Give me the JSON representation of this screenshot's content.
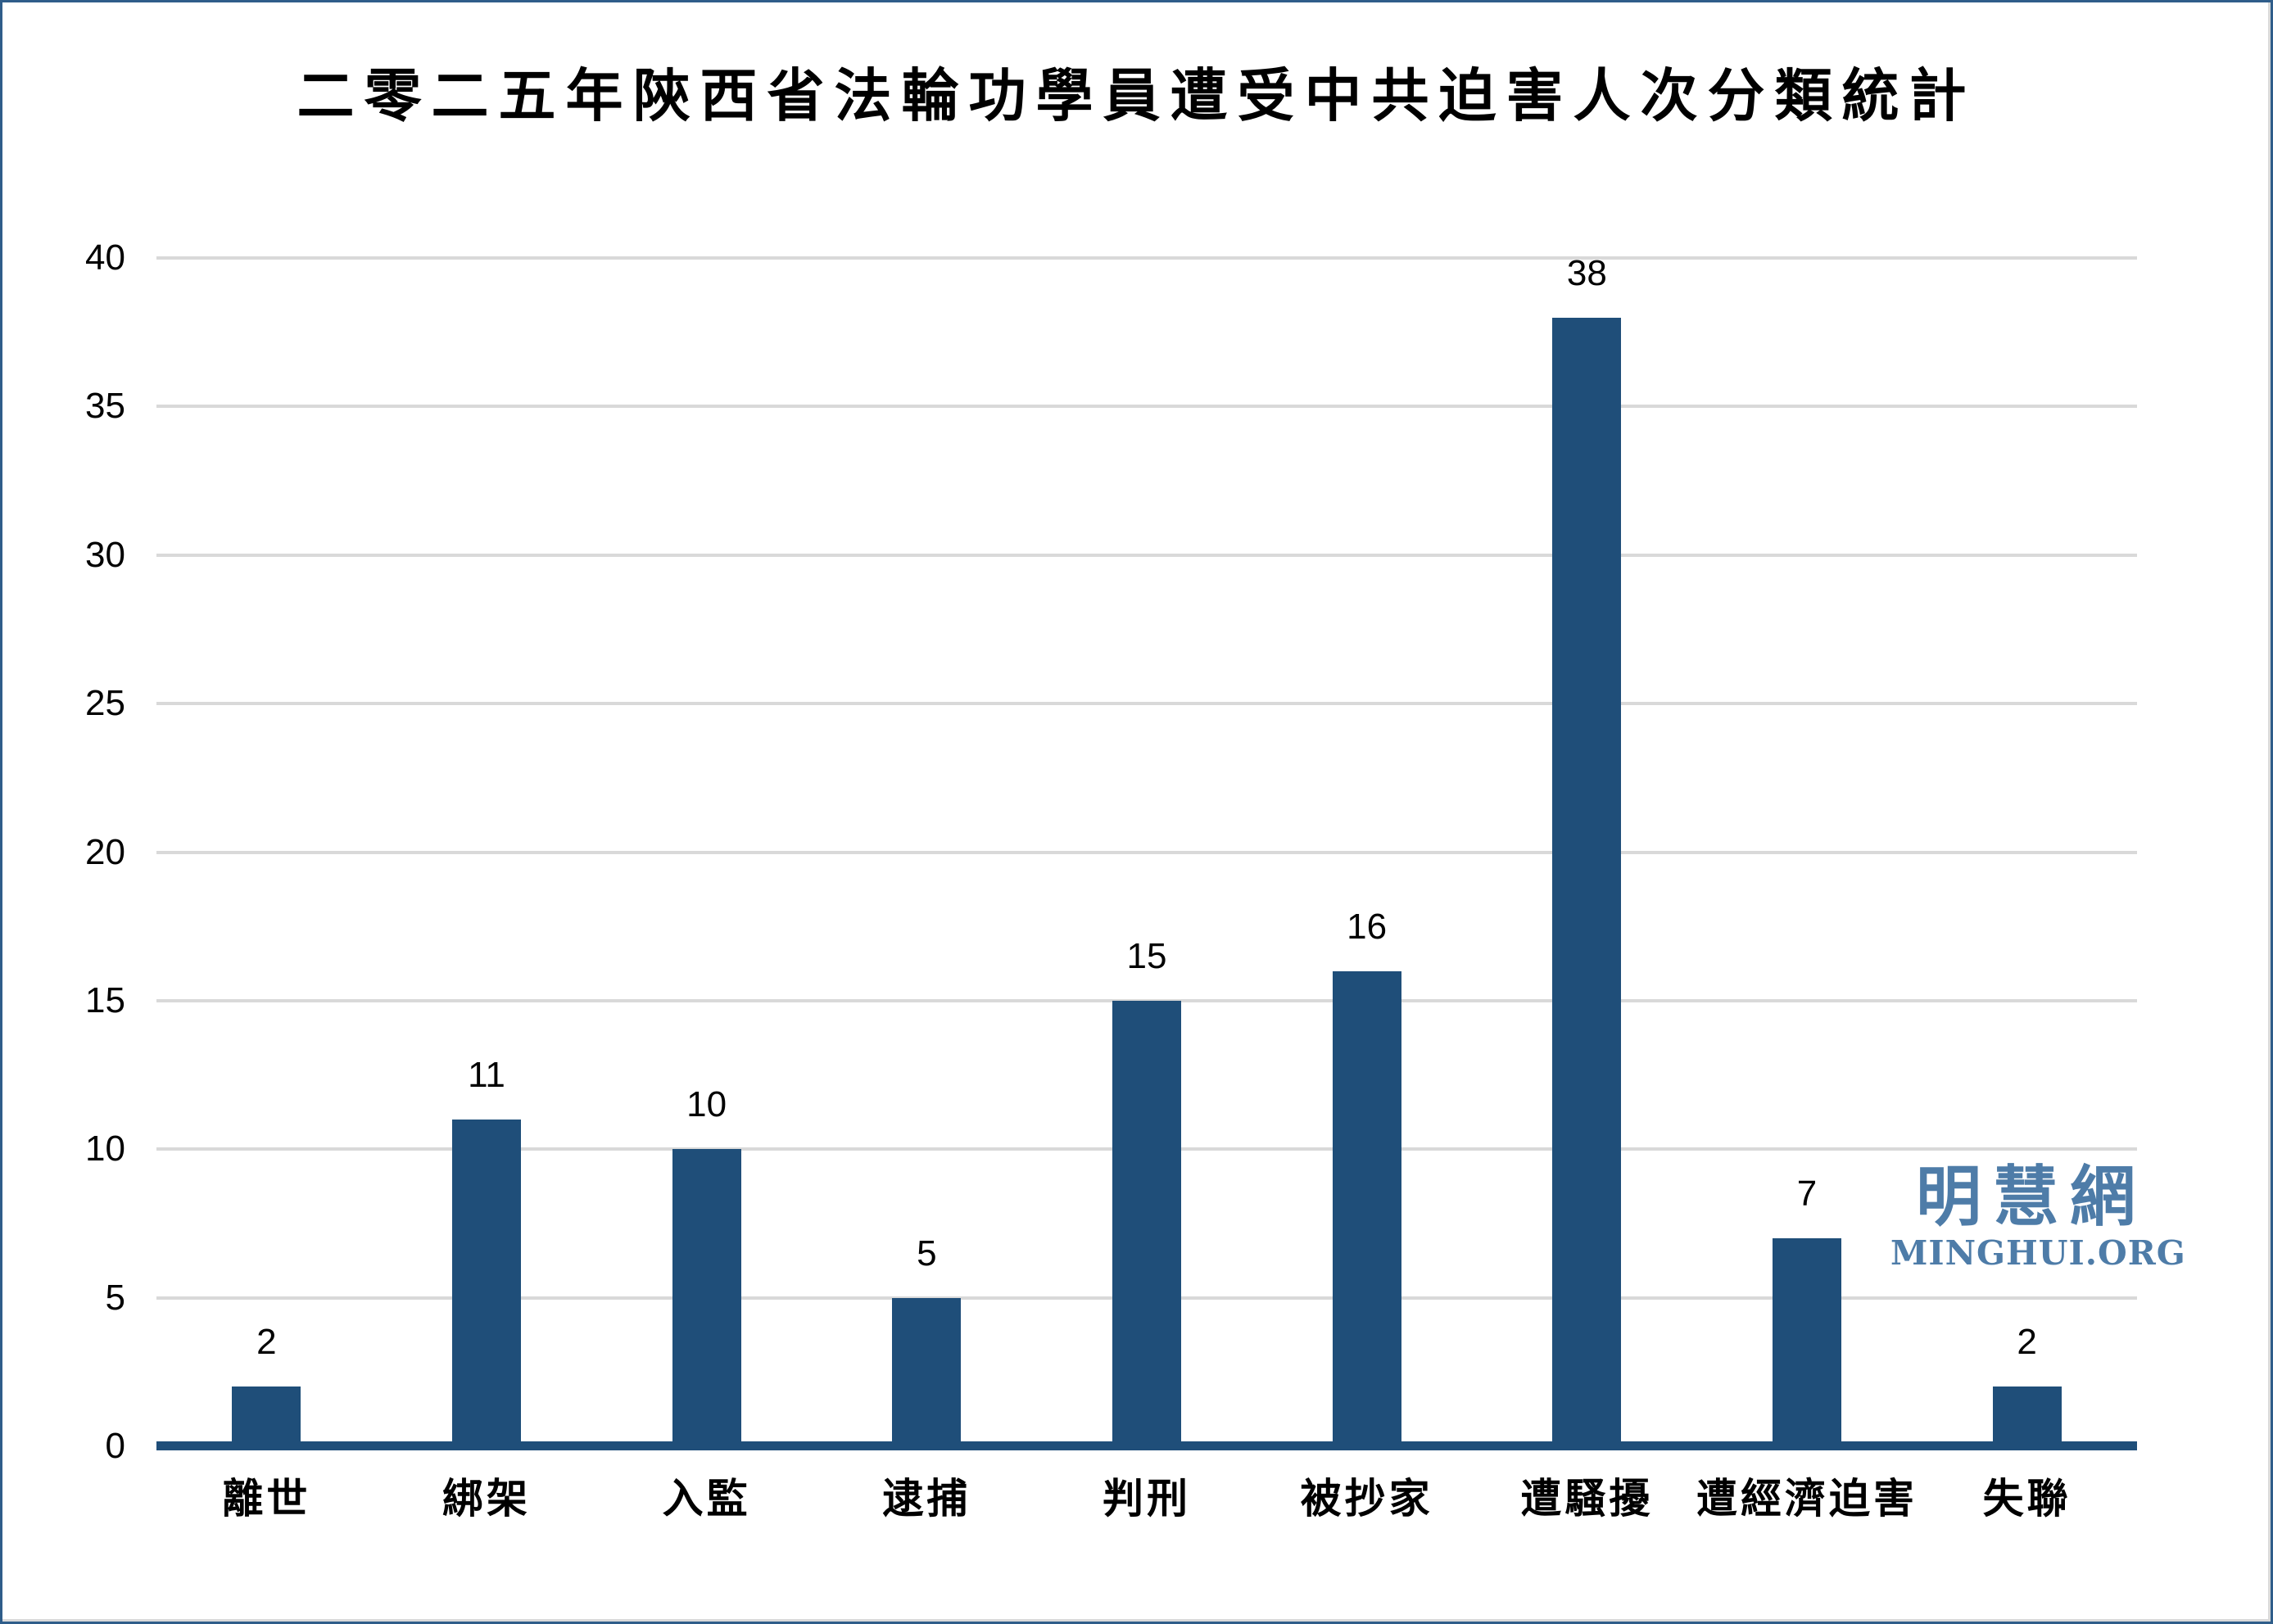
{
  "chart_data": {
    "type": "bar",
    "title": "二零二五年陝西省法輪功學員遭受中共迫害人次分類統計",
    "categories": [
      "離世",
      "綁架",
      "入監",
      "逮捕",
      "判刑",
      "被抄家",
      "遭騷擾",
      "遭經濟迫害",
      "失聯"
    ],
    "values": [
      2,
      11,
      10,
      5,
      15,
      16,
      38,
      7,
      2
    ],
    "data_labels": [
      "2",
      "11",
      "10",
      "5",
      "15",
      "16",
      "38",
      "7",
      "2"
    ],
    "xlabel": "",
    "ylabel": "",
    "ylim": [
      0,
      40
    ],
    "yticks": [
      0,
      5,
      10,
      15,
      20,
      25,
      30,
      35,
      40
    ],
    "grid": true,
    "legend": false
  },
  "watermark": {
    "chinese": "明慧網",
    "domain": "MINGHUI.ORG"
  },
  "colors": {
    "bar": "#1f4e79",
    "axis_line": "#1f4e79",
    "gridline": "#d9d9d9",
    "border": "#2f5d8a",
    "watermark": "#4e7ca8",
    "text": "#000000"
  }
}
